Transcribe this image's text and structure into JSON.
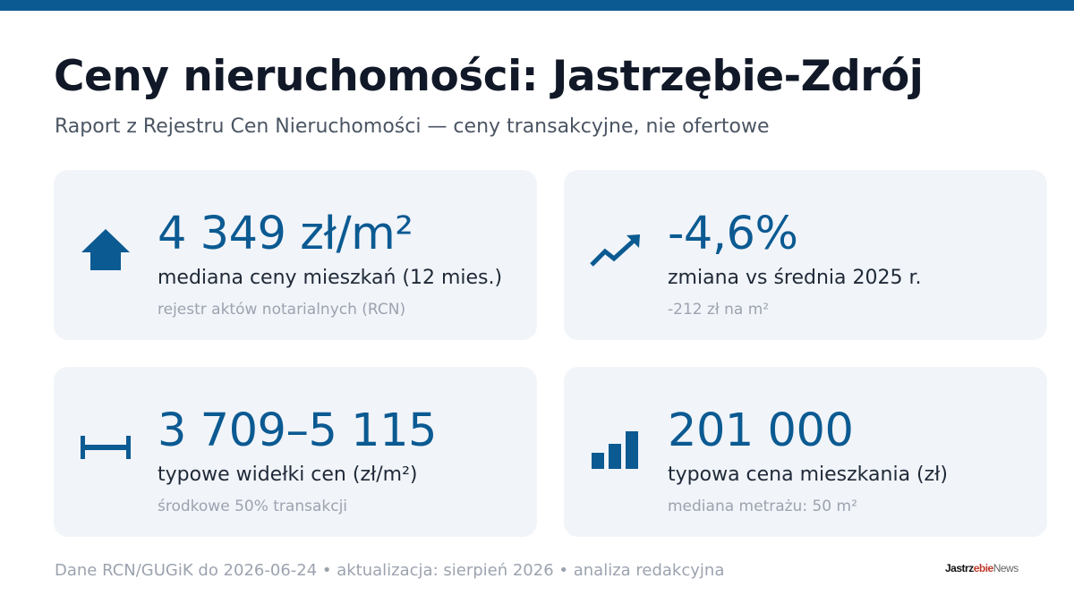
{
  "header": {
    "title": "Ceny nieruchomości: Jastrzębie-Zdrój",
    "subtitle": "Raport z Rejestru Cen Nieruchomości — ceny transakcyjne, nie ofertowe"
  },
  "cards": [
    {
      "icon": "house-icon",
      "value": "4 349 zł/m²",
      "label": "mediana ceny mieszkań (12 mies.)",
      "note": "rejestr aktów notarialnych (RCN)"
    },
    {
      "icon": "trend-up-icon",
      "value": "-4,6%",
      "label": "zmiana vs średnia 2025 r.",
      "note": "-212 zł na m²"
    },
    {
      "icon": "range-icon",
      "value": "3 709–5 115",
      "label": "typowe widełki cen (zł/m²)",
      "note": "środkowe 50% transakcji"
    },
    {
      "icon": "bar-chart-icon",
      "value": "201 000",
      "label": "typowa cena mieszkania (zł)",
      "note": "mediana metrażu: 50 m²"
    }
  ],
  "footer": {
    "text": "Dane RCN/GUGiK do 2026-06-24 • aktualizacja: sierpień 2026 • analiza redakcyjna"
  },
  "logo": {
    "part1": "Jastrz",
    "part2": "ebie",
    "part3": "News"
  },
  "colors": {
    "accent": "#0b5a92",
    "card_bg": "#f1f4f9",
    "title": "#111827",
    "muted": "#9ca3af"
  }
}
